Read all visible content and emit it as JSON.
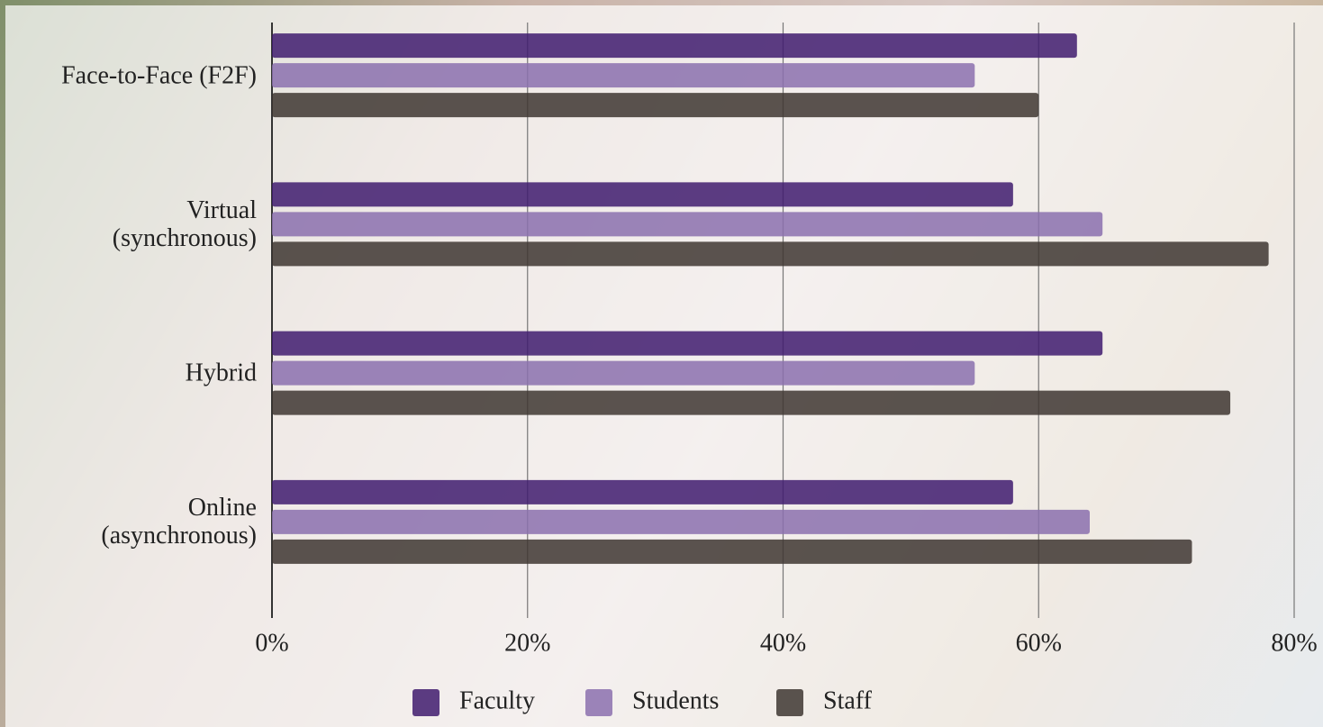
{
  "chart_data": {
    "type": "hbar",
    "categories": [
      "Face-to-Face (F2F)",
      "Virtual\n(synchronous)",
      "Hybrid",
      "Online\n(asynchronous)"
    ],
    "series": [
      {
        "name": "Faculty",
        "color": "#3f1b6e",
        "values": [
          63,
          58,
          65,
          58
        ]
      },
      {
        "name": "Students",
        "color": "#8b70ae",
        "values": [
          55,
          65,
          55,
          64
        ]
      },
      {
        "name": "Staff",
        "color": "#3e3631",
        "values": [
          60,
          78,
          75,
          72
        ]
      }
    ],
    "xlim": [
      0,
      80
    ],
    "xticks": [
      {
        "value": 0,
        "label": "0%"
      },
      {
        "value": 20,
        "label": "20%"
      },
      {
        "value": 40,
        "label": "40%"
      },
      {
        "value": 60,
        "label": "60%"
      },
      {
        "value": 80,
        "label": "80%"
      }
    ],
    "grid": true,
    "legend": "bottom"
  }
}
